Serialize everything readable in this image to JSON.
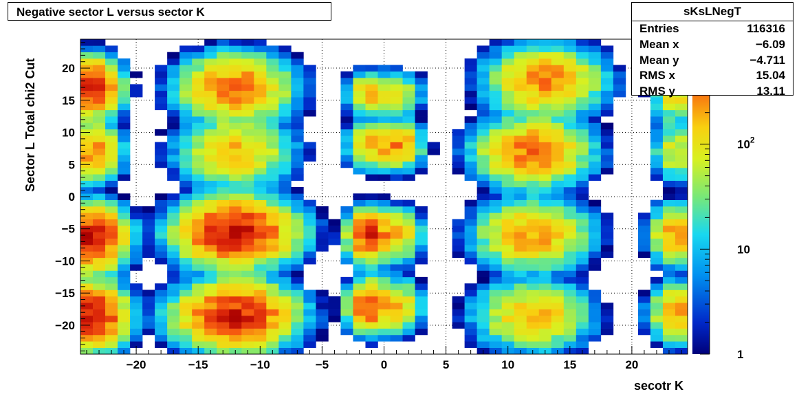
{
  "title": "Negative sector L versus sector K",
  "stats": {
    "name": "sKsLNegT",
    "rows": [
      {
        "label": "Entries",
        "value": "116316"
      },
      {
        "label": "Mean x",
        "value": "−6.09"
      },
      {
        "label": "Mean y",
        "value": "−4.711"
      },
      {
        "label": "RMS x",
        "value": "15.04"
      },
      {
        "label": "RMS y",
        "value": "13.11"
      }
    ]
  },
  "chart_data": {
    "type": "heatmap",
    "title": "Negative sector L versus sector K",
    "xlabel": "secotr K",
    "ylabel": "Sector L  Total chi2 Cut",
    "xlim": [
      -24.5,
      24.5
    ],
    "ylim": [
      -24.5,
      24.5
    ],
    "x_ticks": [
      -20,
      -15,
      -10,
      -5,
      0,
      5,
      10,
      15,
      20
    ],
    "y_ticks": [
      -20,
      -15,
      -10,
      -5,
      0,
      5,
      10,
      15,
      20
    ],
    "colorbar": {
      "scale": "log",
      "min": 1,
      "max": 1000,
      "tick_labels": [
        {
          "value": 1,
          "text": "1"
        },
        {
          "value": 10,
          "text": "10"
        },
        {
          "value": 100,
          "text": "10^2"
        }
      ]
    },
    "grid": true,
    "blobs_description": [
      {
        "cx": -12,
        "cy": 17,
        "sx": 2,
        "sy": 2.3,
        "peak": 320
      },
      {
        "cx": -12,
        "cy": 7,
        "sx": 2,
        "sy": 2.3,
        "peak": 170
      },
      {
        "cx": -12,
        "cy": -5.5,
        "sx": 2.1,
        "sy": 2.3,
        "peak": 800
      },
      {
        "cx": -12,
        "cy": -18.5,
        "sx": 2.1,
        "sy": 2.3,
        "peak": 700
      },
      {
        "cx": 13,
        "cy": 18,
        "sx": 2,
        "sy": 2.3,
        "peak": 280
      },
      {
        "cx": 12,
        "cy": 7,
        "sx": 2,
        "sy": 2.3,
        "peak": 320
      },
      {
        "cx": 12,
        "cy": -6,
        "sx": 2,
        "sy": 2.3,
        "peak": 240
      },
      {
        "cx": 12,
        "cy": -18.5,
        "sx": 2,
        "sy": 2.3,
        "peak": 180
      },
      {
        "cx": -23.5,
        "cy": 17,
        "sx": 1,
        "sy": 2,
        "peak": 650
      },
      {
        "cx": -23.5,
        "cy": 7,
        "sx": 1,
        "sy": 2,
        "peak": 260
      },
      {
        "cx": -23.5,
        "cy": -6.5,
        "sx": 1.2,
        "sy": 2.2,
        "peak": 820
      },
      {
        "cx": -23.5,
        "cy": -18.5,
        "sx": 1.2,
        "sy": 2.2,
        "peak": 800
      },
      {
        "cx": 23.5,
        "cy": 16,
        "sx": 0.8,
        "sy": 2,
        "peak": 120
      },
      {
        "cx": 23.5,
        "cy": 7,
        "sx": 0.8,
        "sy": 2,
        "peak": 90
      },
      {
        "cx": 23.5,
        "cy": -6,
        "sx": 0.9,
        "sy": 2,
        "peak": 220
      },
      {
        "cx": 23.5,
        "cy": -18,
        "sx": 0.9,
        "sy": 2,
        "peak": 220
      },
      {
        "cx": -1.2,
        "cy": 16,
        "sx": 0.8,
        "sy": 1.5,
        "peak": 160
      },
      {
        "cx": -1.2,
        "cy": 8,
        "sx": 0.8,
        "sy": 1.6,
        "peak": 160
      },
      {
        "cx": -1.2,
        "cy": -6,
        "sx": 0.8,
        "sy": 1.8,
        "peak": 600
      },
      {
        "cx": -1.2,
        "cy": -17,
        "sx": 0.8,
        "sy": 1.8,
        "peak": 450
      },
      {
        "cx": 1,
        "cy": 16,
        "sx": 0.9,
        "sy": 1.5,
        "peak": 90
      },
      {
        "cx": 1,
        "cy": 8,
        "sx": 0.9,
        "sy": 1.6,
        "peak": 280
      },
      {
        "cx": 1,
        "cy": -6,
        "sx": 0.9,
        "sy": 1.8,
        "peak": 170
      },
      {
        "cx": 1,
        "cy": -17,
        "sx": 0.9,
        "sy": 1.8,
        "peak": 170
      }
    ]
  }
}
